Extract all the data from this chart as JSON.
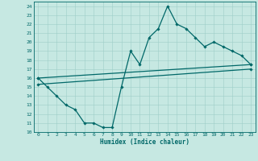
{
  "xlabel": "Humidex (Indice chaleur)",
  "xlim": [
    -0.5,
    23.5
  ],
  "ylim": [
    10,
    24.5
  ],
  "xticks": [
    0,
    1,
    2,
    3,
    4,
    5,
    6,
    7,
    8,
    9,
    10,
    11,
    12,
    13,
    14,
    15,
    16,
    17,
    18,
    19,
    20,
    21,
    22,
    23
  ],
  "yticks": [
    10,
    11,
    12,
    13,
    14,
    15,
    16,
    17,
    18,
    19,
    20,
    21,
    22,
    23,
    24
  ],
  "bg_color": "#c6e8e2",
  "grid_color": "#9ecec8",
  "line_color": "#006868",
  "line_width": 0.9,
  "marker": "D",
  "marker_size": 1.8,
  "curve1_x": [
    0,
    1,
    2,
    3,
    4,
    5,
    6,
    7,
    8,
    9,
    10,
    11,
    12,
    13,
    14,
    15,
    16,
    17,
    18,
    19,
    20,
    21,
    22,
    23
  ],
  "curve1_y": [
    16,
    15,
    14,
    13,
    12.5,
    11,
    11,
    10.5,
    10.5,
    15,
    19,
    17.5,
    20.5,
    21.5,
    24,
    22,
    21.5,
    20.5,
    19.5,
    20,
    19.5,
    19,
    18.5,
    17.5
  ],
  "curve2_x": [
    0,
    23
  ],
  "curve2_y": [
    16.0,
    17.5
  ],
  "curve3_x": [
    0,
    23
  ],
  "curve3_y": [
    15.3,
    17.0
  ]
}
